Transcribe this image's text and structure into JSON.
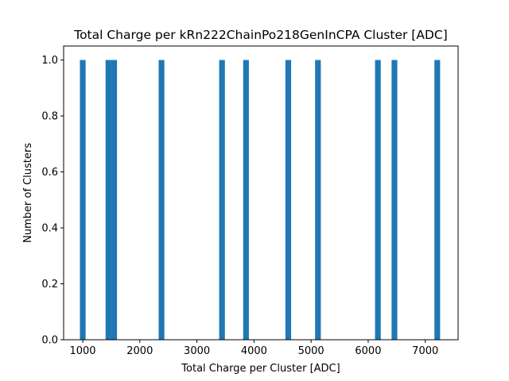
{
  "chart_data": {
    "type": "bar",
    "title": "Total Charge per kRn222ChainPo218GenInCPA Cluster [ADC]",
    "xlabel": "Total Charge per Cluster [ADC]",
    "ylabel": "Number of Clusters",
    "xlim": [
      665,
      7575
    ],
    "ylim": [
      0,
      1.05
    ],
    "bin_width": 100,
    "bars": [
      {
        "left": 950,
        "value": 1
      },
      {
        "left": 1400,
        "value": 1
      },
      {
        "left": 1500,
        "value": 1
      },
      {
        "left": 2330,
        "value": 1
      },
      {
        "left": 3390,
        "value": 1
      },
      {
        "left": 3810,
        "value": 1
      },
      {
        "left": 4550,
        "value": 1
      },
      {
        "left": 5070,
        "value": 1
      },
      {
        "left": 6120,
        "value": 1
      },
      {
        "left": 6410,
        "value": 1
      },
      {
        "left": 7160,
        "value": 1
      }
    ],
    "x_ticks": [
      {
        "value": 1000,
        "label": "1000"
      },
      {
        "value": 2000,
        "label": "2000"
      },
      {
        "value": 3000,
        "label": "3000"
      },
      {
        "value": 4000,
        "label": "4000"
      },
      {
        "value": 5000,
        "label": "5000"
      },
      {
        "value": 6000,
        "label": "6000"
      },
      {
        "value": 7000,
        "label": "7000"
      }
    ],
    "y_ticks": [
      {
        "value": 0.0,
        "label": "0.0"
      },
      {
        "value": 0.2,
        "label": "0.2"
      },
      {
        "value": 0.4,
        "label": "0.4"
      },
      {
        "value": 0.6,
        "label": "0.6"
      },
      {
        "value": 0.8,
        "label": "0.8"
      },
      {
        "value": 1.0,
        "label": "1.0"
      }
    ],
    "bar_color": "#1f77b4",
    "grid": false
  }
}
